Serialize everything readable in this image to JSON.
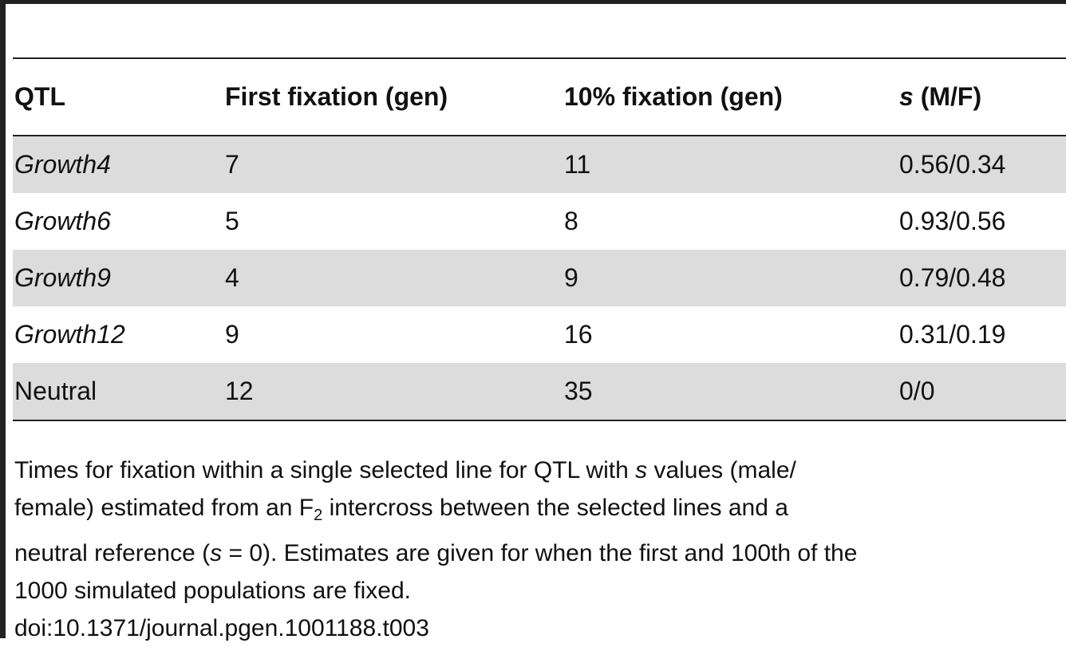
{
  "table": {
    "headers": [
      "QTL",
      "First fixation (gen)",
      "10% fixation (gen)",
      [
        {
          "text": "s",
          "style": "italic"
        },
        {
          "text": " (M/F)",
          "style": "normal"
        }
      ]
    ],
    "rows": [
      [
        {
          "text": "Growth4",
          "style": "italic"
        },
        7,
        11,
        "0.56/0.34"
      ],
      [
        {
          "text": "Growth6",
          "style": "italic"
        },
        5,
        8,
        "0.93/0.56"
      ],
      [
        {
          "text": "Growth9",
          "style": "italic"
        },
        4,
        9,
        "0.79/0.48"
      ],
      [
        {
          "text": "Growth12",
          "style": "italic"
        },
        9,
        16,
        "0.31/0.19"
      ],
      [
        {
          "text": "Neutral",
          "style": "normal"
        },
        12,
        35,
        "0/0"
      ]
    ]
  },
  "caption": [
    [
      {
        "text": "Times for fixation within a single selected line for QTL with ",
        "style": "normal"
      },
      {
        "text": "s",
        "style": "italic"
      },
      {
        "text": " values (male/",
        "style": "normal"
      }
    ],
    [
      {
        "text": "female) estimated from an F",
        "style": "normal"
      },
      {
        "text": "2",
        "style": "sub"
      },
      {
        "text": " intercross between the selected lines and a",
        "style": "normal"
      }
    ],
    [
      {
        "text": "neutral reference (",
        "style": "normal"
      },
      {
        "text": "s",
        "style": "italic"
      },
      {
        "text": " = 0). Estimates are given for when the first and 100th of the",
        "style": "normal"
      }
    ],
    [
      {
        "text": "1000 simulated populations are fixed.",
        "style": "normal"
      }
    ]
  ],
  "doi": "doi:10.1371/journal.pgen.1001188.t003"
}
